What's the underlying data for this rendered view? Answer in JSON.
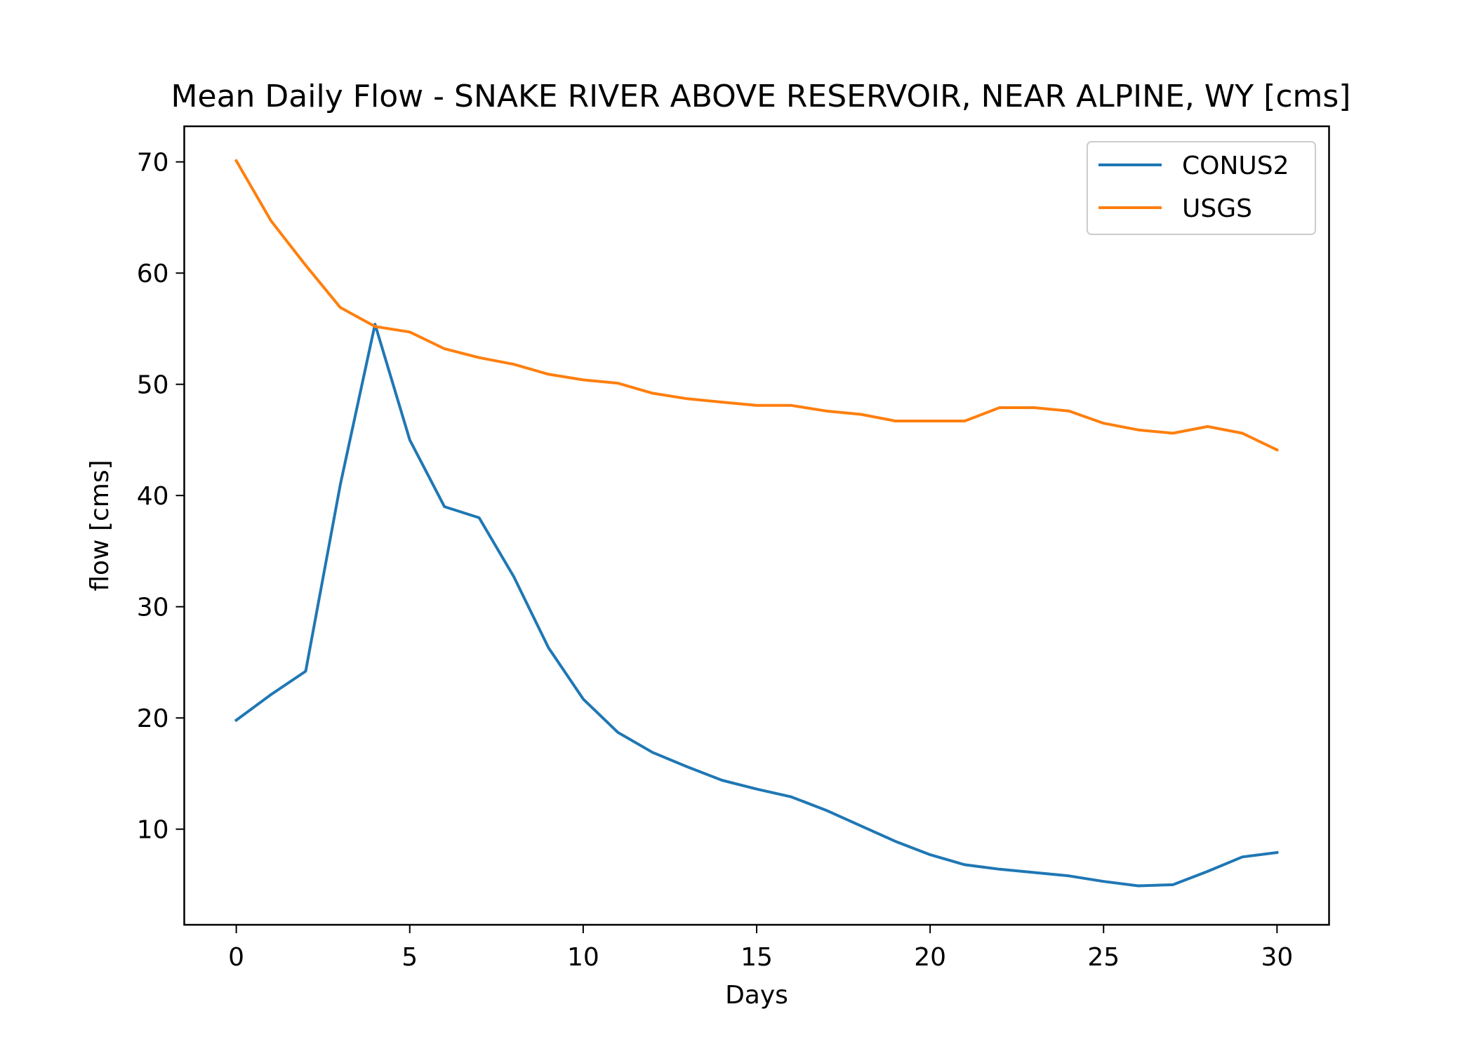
{
  "chart_data": {
    "type": "line",
    "title": "Mean Daily Flow - SNAKE RIVER ABOVE RESERVOIR, NEAR ALPINE, WY [cms]",
    "xlabel": "Days",
    "ylabel": "flow [cms]",
    "x": [
      0,
      1,
      2,
      3,
      4,
      5,
      6,
      7,
      8,
      9,
      10,
      11,
      12,
      13,
      14,
      15,
      16,
      17,
      18,
      19,
      20,
      21,
      22,
      23,
      24,
      25,
      26,
      27,
      28,
      29,
      30
    ],
    "xlim": [
      -1.5,
      31.5
    ],
    "ylim": [
      1.4,
      73.2
    ],
    "xticks": [
      0,
      5,
      10,
      15,
      20,
      25,
      30
    ],
    "yticks": [
      10,
      20,
      30,
      40,
      50,
      60,
      70
    ],
    "grid": false,
    "legend_position": "upper right",
    "series": [
      {
        "name": "CONUS2",
        "color": "#1f77b4",
        "values": [
          19.8,
          22.1,
          24.2,
          41,
          55.4,
          45,
          39,
          38,
          32.7,
          26.3,
          21.7,
          18.7,
          16.9,
          15.6,
          14.4,
          13.6,
          12.9,
          11.7,
          10.3,
          8.9,
          7.7,
          6.8,
          6.4,
          6.1,
          5.8,
          5.3,
          4.9,
          5,
          6.2,
          7.5,
          7.9
        ]
      },
      {
        "name": "USGS",
        "color": "#ff7f0e",
        "values": [
          70.1,
          64.7,
          60.7,
          56.9,
          55.2,
          54.7,
          53.2,
          52.4,
          51.8,
          50.9,
          50.4,
          50.1,
          49.2,
          48.7,
          48.4,
          48.1,
          48.1,
          47.6,
          47.3,
          46.7,
          46.7,
          46.7,
          47.9,
          47.9,
          47.6,
          46.5,
          45.9,
          45.6,
          46.2,
          45.6,
          44.1
        ]
      }
    ]
  }
}
